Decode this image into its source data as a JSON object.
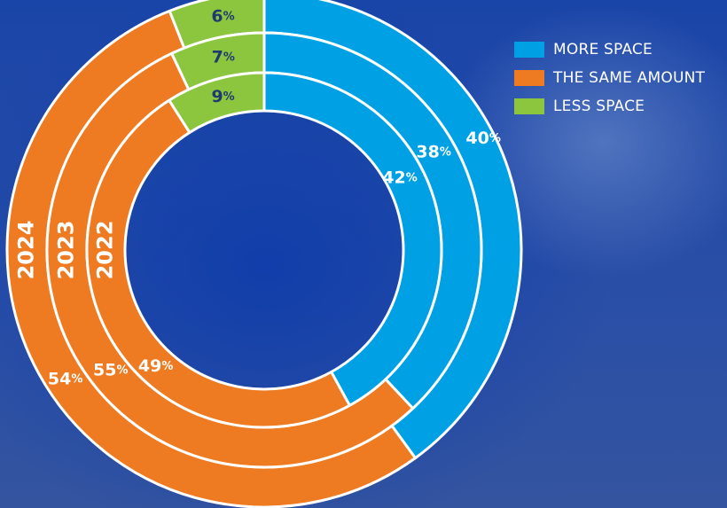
{
  "colors": {
    "more_space": "#00a1e4",
    "same_amount": "#ee7a21",
    "less_space": "#8cc63f"
  },
  "legend": [
    {
      "label": "MORE SPACE",
      "color": "#00a1e4"
    },
    {
      "label": "THE SAME AMOUNT",
      "color": "#ee7a21"
    },
    {
      "label": "LESS SPACE",
      "color": "#8cc63f"
    }
  ],
  "chart_data": {
    "type": "pie",
    "subtype": "nested-donut",
    "categories": [
      "MORE SPACE",
      "THE SAME AMOUNT",
      "LESS SPACE"
    ],
    "series": [
      {
        "name": "2024",
        "values": [
          40,
          54,
          6
        ]
      },
      {
        "name": "2023",
        "values": [
          38,
          55,
          7
        ]
      },
      {
        "name": "2022",
        "values": [
          42,
          49,
          9
        ]
      }
    ],
    "value_suffix": "%",
    "legend_position": "top-right"
  }
}
